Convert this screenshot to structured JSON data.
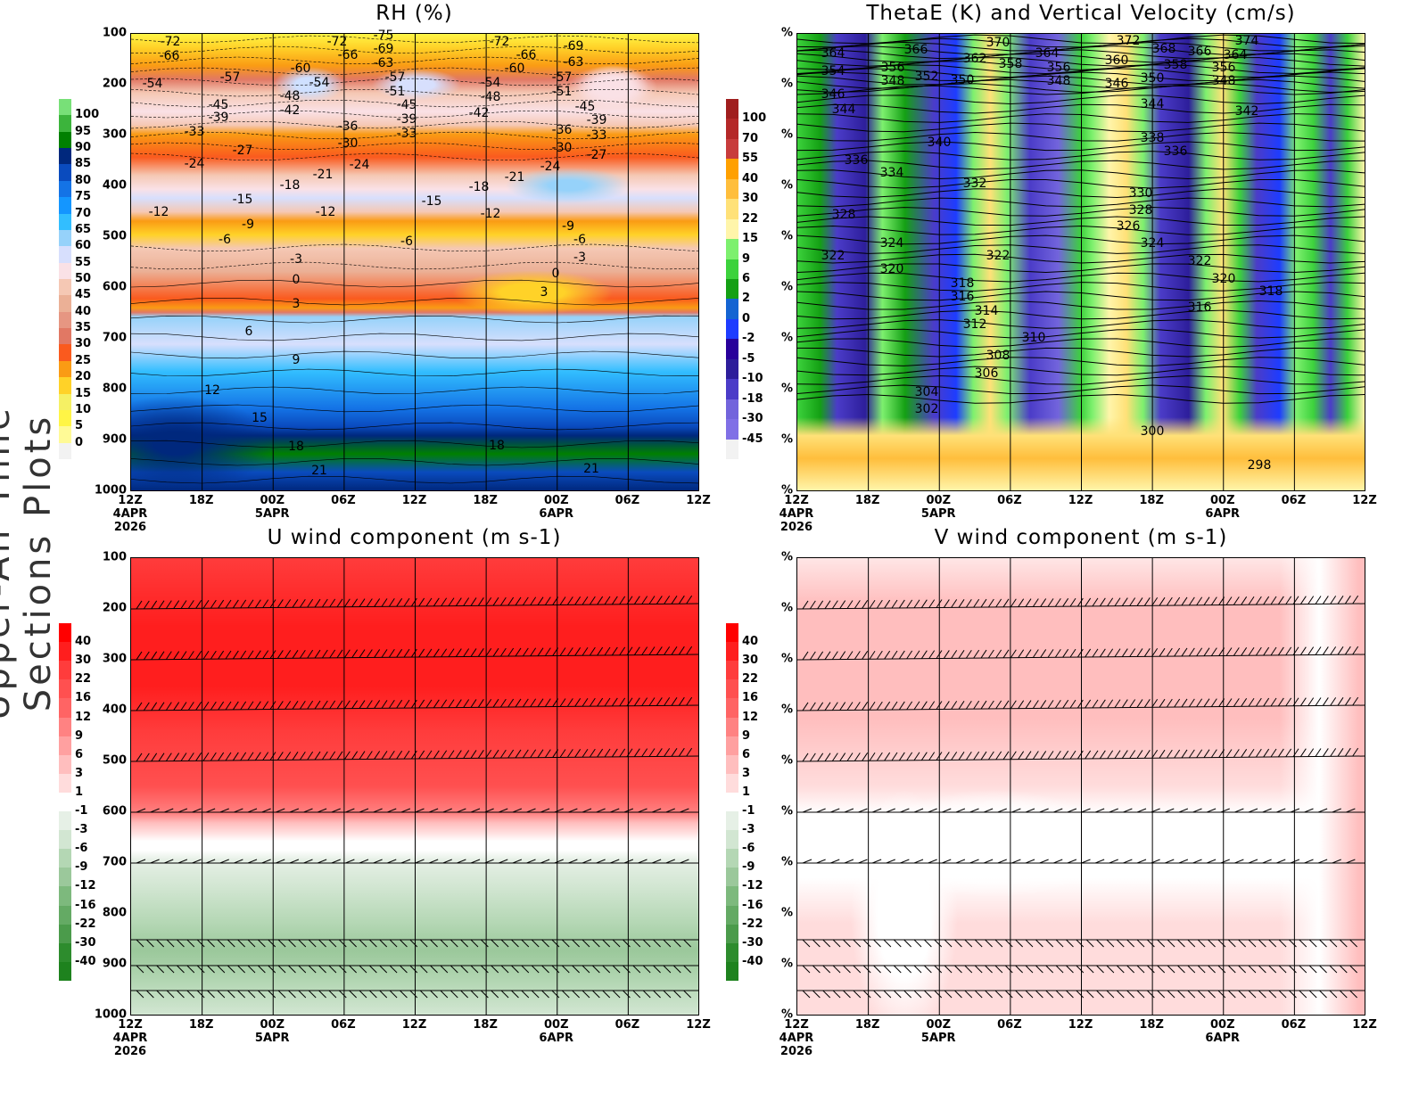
{
  "side_title": "Upper-Air Time Sections Plots",
  "time_axis": {
    "ticks": [
      "12Z",
      "18Z",
      "00Z",
      "06Z",
      "12Z",
      "18Z",
      "00Z",
      "06Z",
      "12Z"
    ],
    "dates": [
      "4APR",
      "",
      "5APR",
      "",
      "",
      "",
      "6APR",
      "",
      ""
    ],
    "year": "2026"
  },
  "pressure_levels": [
    "100",
    "200",
    "300",
    "400",
    "500",
    "600",
    "700",
    "800",
    "900",
    "1000"
  ],
  "right_axis_label": "%",
  "panels": {
    "rh": {
      "title": "RH (%)",
      "colorbar": {
        "labels": [
          "100",
          "95",
          "90",
          "85",
          "80",
          "75",
          "70",
          "65",
          "60",
          "55",
          "50",
          "45",
          "40",
          "35",
          "30",
          "25",
          "20",
          "15",
          "10",
          "5",
          "0"
        ],
        "colors": [
          "#78e078",
          "#3cb43c",
          "#008000",
          "#00287d",
          "#0a4bbe",
          "#1473e6",
          "#1496ff",
          "#32beff",
          "#96d2fa",
          "#d7dffd",
          "#fae1e6",
          "#f5c8b4",
          "#ebb096",
          "#e69682",
          "#e17864",
          "#fa5a1e",
          "#fa9b14",
          "#ffd228",
          "#f5f064",
          "#fff546",
          "#fffa96",
          "#f2f2f2"
        ]
      },
      "contour_labels": [
        "-72",
        "-66",
        "-54",
        "-57",
        "-60",
        "-72",
        "-66",
        "-75",
        "-69",
        "-63",
        "-57",
        "-51",
        "-45",
        "-39",
        "-33",
        "-48",
        "-42",
        "-54",
        "-45",
        "-39",
        "-33",
        "-27",
        "-24",
        "-36",
        "-30",
        "-24",
        "-21",
        "-18",
        "-15",
        "-12",
        "-9",
        "-6",
        "-3",
        "0",
        "3",
        "6",
        "9",
        "12",
        "15",
        "18",
        "21",
        "-72",
        "-66",
        "-60",
        "-54",
        "-48",
        "-42",
        "-57",
        "-51",
        "-69",
        "-63",
        "-45",
        "-39",
        "-33",
        "-36",
        "-30",
        "-27",
        "-24",
        "-21",
        "-18",
        "-15",
        "-12",
        "-9",
        "-6",
        "-3",
        "0",
        "3",
        "-12",
        "-6",
        "18",
        "21"
      ]
    },
    "thetae": {
      "title": "ThetaE (K) and Vertical Velocity (cm/s)",
      "colorbar": {
        "labels": [
          "100",
          "70",
          "55",
          "40",
          "30",
          "22",
          "15",
          "9",
          "6",
          "2",
          "0",
          "-2",
          "-5",
          "-10",
          "-18",
          "-30",
          "-45"
        ],
        "colors": [
          "#a01e1e",
          "#b42828",
          "#c83c3c",
          "#ffa000",
          "#ffbe3c",
          "#ffe178",
          "#fff5aa",
          "#7df06e",
          "#3cd23c",
          "#14a014",
          "#1464d2",
          "#1e3cff",
          "#28009b",
          "#2d1e9b",
          "#4b3cc8",
          "#7264dc",
          "#8070e6",
          "#f2f2f2"
        ]
      },
      "contour_labels": [
        "364",
        "354",
        "346",
        "344",
        "356",
        "348",
        "366",
        "352",
        "350",
        "370",
        "362",
        "358",
        "364",
        "356",
        "348",
        "372",
        "360",
        "346",
        "368",
        "366",
        "358",
        "350",
        "374",
        "364",
        "356",
        "348",
        "344",
        "342",
        "340",
        "338",
        "336",
        "336",
        "334",
        "332",
        "330",
        "328",
        "326",
        "328",
        "324",
        "324",
        "322",
        "320",
        "322",
        "322",
        "320",
        "318",
        "318",
        "316",
        "316",
        "314",
        "312",
        "310",
        "308",
        "306",
        "304",
        "302",
        "300",
        "298"
      ]
    },
    "u": {
      "title": "U wind component (m s-1)"
    },
    "v": {
      "title": "V wind component (m s-1)"
    }
  },
  "wind_colorbar": {
    "labels": [
      "40",
      "30",
      "22",
      "16",
      "12",
      "9",
      "6",
      "3",
      "1",
      "-1",
      "-3",
      "-6",
      "-9",
      "-12",
      "-16",
      "-22",
      "-30",
      "-40"
    ],
    "colors": [
      "#ff0000",
      "#ff1e1e",
      "#ff3c3c",
      "#ff5050",
      "#ff6464",
      "#ff8282",
      "#ffa0a0",
      "#ffbebe",
      "#ffdcdc",
      "#ffffff",
      "#e6f0e6",
      "#d2e6d2",
      "#b4d7b4",
      "#9bc89b",
      "#7db97d",
      "#64aa64",
      "#4b9b4b",
      "#2d8c2d",
      "#1e821e"
    ]
  }
}
